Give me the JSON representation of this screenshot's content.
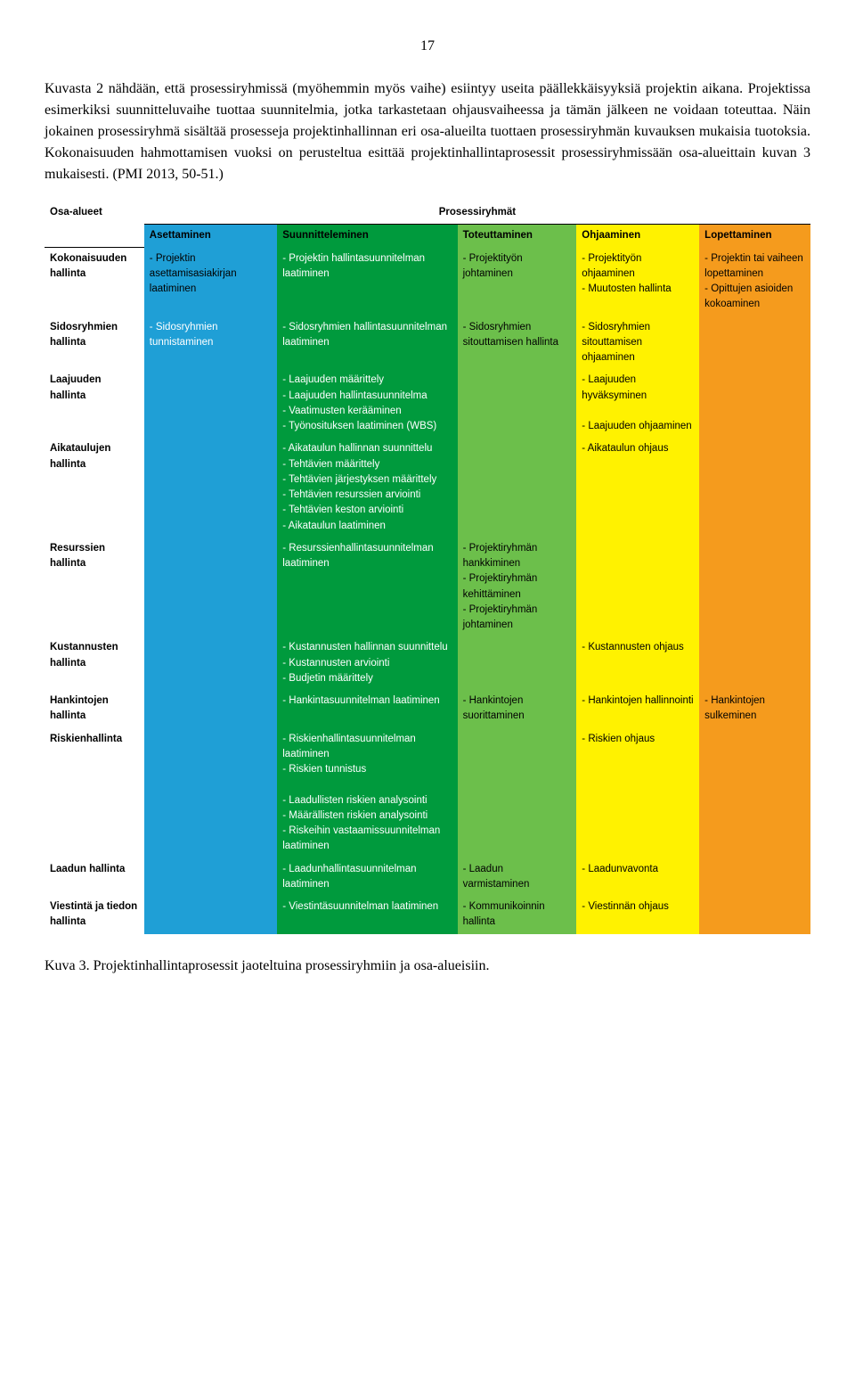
{
  "page_number": "17",
  "paragraph": "Kuvasta 2 nähdään, että prosessiryhmissä (myöhemmin myös vaihe) esiintyy useita päällekkäisyyksiä projektin aikana. Projektissa esimerkiksi suunnitteluvaihe tuottaa suunnitelmia, jotka tarkastetaan ohjausvaiheessa ja tämän jälkeen ne voidaan toteuttaa. Näin jokainen prosessiryhmä sisältää prosesseja projektinhallinnan eri osa-alueilta tuottaen prosessiryhmän kuvauksen mukaisia tuotoksia. Kokonaisuuden hahmottamisen vuoksi on perusteltua esittää projektinhallintaprosessit prosessiryhmissään osa-alueittain kuvan 3 mukaisesti. (PMI 2013, 50-51.)",
  "caption": "Kuva 3. Projektinhallintaprosessit jaoteltuina prosessiryhmiin ja osa-alueisiin.",
  "table": {
    "corner_label": "Osa-alueet",
    "group_header": "Prosessiryhmät",
    "columns": [
      {
        "label": "Asettaminen",
        "bg": "#1f9fd6",
        "fg": "#000000"
      },
      {
        "label": "Suunnitteleminen",
        "bg": "#009a3d",
        "fg": "#000000"
      },
      {
        "label": "Toteuttaminen",
        "bg": "#6cbf4b",
        "fg": "#000000"
      },
      {
        "label": "Ohjaaminen",
        "bg": "#fff200",
        "fg": "#000000"
      },
      {
        "label": "Lopettaminen",
        "bg": "#f59b1d",
        "fg": "#000000"
      }
    ],
    "rows": [
      {
        "label": "Kokonaisuuden hallinta",
        "cells": [
          {
            "text": "- Projektin asettamisasiakirjan laatiminen",
            "bg": "#1f9fd6",
            "fg": "#000000"
          },
          {
            "text": "- Projektin hallintasuunnitelman laatiminen",
            "bg": "#009a3d",
            "fg": "#ffffff"
          },
          {
            "text": "- Projektityön johtaminen",
            "bg": "#6cbf4b",
            "fg": "#000000"
          },
          {
            "text": "- Projektityön ohjaaminen\n- Muutosten hallinta",
            "bg": "#fff200",
            "fg": "#000000"
          },
          {
            "text": "- Projektin tai vaiheen lopettaminen\n- Opittujen asioiden kokoaminen",
            "bg": "#f59b1d",
            "fg": "#000000"
          }
        ]
      },
      {
        "label": "Sidosryhmien hallinta",
        "cells": [
          {
            "text": "- Sidosryhmien tunnistaminen",
            "bg": "#1f9fd6",
            "fg": "#ffffff"
          },
          {
            "text": "- Sidosryhmien hallintasuunnitelman laatiminen",
            "bg": "#009a3d",
            "fg": "#ffffff"
          },
          {
            "text": "- Sidosryhmien sitouttamisen hallinta",
            "bg": "#6cbf4b",
            "fg": "#000000"
          },
          {
            "text": "- Sidosryhmien sitouttamisen ohjaaminen",
            "bg": "#fff200",
            "fg": "#000000"
          },
          {
            "text": "",
            "bg": "#f59b1d",
            "fg": "#000000"
          }
        ]
      },
      {
        "label": "Laajuuden hallinta",
        "cells": [
          {
            "text": "",
            "bg": "#1f9fd6",
            "fg": "#000000"
          },
          {
            "text": "- Laajuuden määrittely\n- Laajuuden hallintasuunnitelma\n- Vaatimusten kerääminen\n- Työnosituksen laatiminen (WBS)",
            "bg": "#009a3d",
            "fg": "#ffffff"
          },
          {
            "text": "",
            "bg": "#6cbf4b",
            "fg": "#000000"
          },
          {
            "text": "- Laajuuden hyväksyminen\n\n- Laajuuden ohjaaminen",
            "bg": "#fff200",
            "fg": "#000000"
          },
          {
            "text": "",
            "bg": "#f59b1d",
            "fg": "#000000"
          }
        ]
      },
      {
        "label": "Aikataulujen hallinta",
        "cells": [
          {
            "text": "",
            "bg": "#1f9fd6",
            "fg": "#000000"
          },
          {
            "text": "- Aikataulun hallinnan suunnittelu\n- Tehtävien määrittely\n- Tehtävien järjestyksen määrittely\n- Tehtävien resurssien arviointi\n- Tehtävien keston arviointi\n- Aikataulun laatiminen",
            "bg": "#009a3d",
            "fg": "#ffffff"
          },
          {
            "text": "",
            "bg": "#6cbf4b",
            "fg": "#000000"
          },
          {
            "text": "- Aikataulun ohjaus",
            "bg": "#fff200",
            "fg": "#000000"
          },
          {
            "text": "",
            "bg": "#f59b1d",
            "fg": "#000000"
          }
        ]
      },
      {
        "label": "Resurssien hallinta",
        "cells": [
          {
            "text": "",
            "bg": "#1f9fd6",
            "fg": "#000000"
          },
          {
            "text": "- Resurssienhallintasuunnitelman laatiminen",
            "bg": "#009a3d",
            "fg": "#ffffff"
          },
          {
            "text": "- Projektiryhmän hankkiminen\n- Projektiryhmän kehittäminen\n- Projektiryhmän johtaminen",
            "bg": "#6cbf4b",
            "fg": "#000000"
          },
          {
            "text": "",
            "bg": "#fff200",
            "fg": "#000000"
          },
          {
            "text": "",
            "bg": "#f59b1d",
            "fg": "#000000"
          }
        ]
      },
      {
        "label": "Kustannusten hallinta",
        "cells": [
          {
            "text": "",
            "bg": "#1f9fd6",
            "fg": "#000000"
          },
          {
            "text": "- Kustannusten hallinnan suunnittelu\n- Kustannusten arviointi\n- Budjetin määrittely",
            "bg": "#009a3d",
            "fg": "#ffffff"
          },
          {
            "text": "",
            "bg": "#6cbf4b",
            "fg": "#000000"
          },
          {
            "text": "- Kustannusten ohjaus",
            "bg": "#fff200",
            "fg": "#000000"
          },
          {
            "text": "",
            "bg": "#f59b1d",
            "fg": "#000000"
          }
        ]
      },
      {
        "label": "Hankintojen hallinta",
        "cells": [
          {
            "text": "",
            "bg": "#1f9fd6",
            "fg": "#000000"
          },
          {
            "text": "- Hankintasuunnitelman laatiminen",
            "bg": "#009a3d",
            "fg": "#ffffff"
          },
          {
            "text": "- Hankintojen suorittaminen",
            "bg": "#6cbf4b",
            "fg": "#000000"
          },
          {
            "text": "- Hankintojen hallinnointi",
            "bg": "#fff200",
            "fg": "#000000"
          },
          {
            "text": "- Hankintojen sulkeminen",
            "bg": "#f59b1d",
            "fg": "#000000"
          }
        ]
      },
      {
        "label": "Riskienhallinta",
        "cells": [
          {
            "text": "",
            "bg": "#1f9fd6",
            "fg": "#000000"
          },
          {
            "text": "- Riskienhallintasuunnitelman laatiminen\n- Riskien tunnistus\n\n- Laadullisten riskien analysointi\n- Määrällisten riskien analysointi\n- Riskeihin vastaamissuunnitelman laatiminen",
            "bg": "#009a3d",
            "fg": "#ffffff"
          },
          {
            "text": "",
            "bg": "#6cbf4b",
            "fg": "#000000"
          },
          {
            "text": "- Riskien ohjaus",
            "bg": "#fff200",
            "fg": "#000000"
          },
          {
            "text": "",
            "bg": "#f59b1d",
            "fg": "#000000"
          }
        ]
      },
      {
        "label": "Laadun hallinta",
        "cells": [
          {
            "text": "",
            "bg": "#1f9fd6",
            "fg": "#000000"
          },
          {
            "text": "- Laadunhallintasuunnitelman laatiminen",
            "bg": "#009a3d",
            "fg": "#ffffff"
          },
          {
            "text": "- Laadun varmistaminen",
            "bg": "#6cbf4b",
            "fg": "#000000"
          },
          {
            "text": "- Laadunvavonta",
            "bg": "#fff200",
            "fg": "#000000"
          },
          {
            "text": "",
            "bg": "#f59b1d",
            "fg": "#000000"
          }
        ]
      },
      {
        "label": "Viestintä ja tiedon hallinta",
        "cells": [
          {
            "text": "",
            "bg": "#1f9fd6",
            "fg": "#000000"
          },
          {
            "text": "- Viestintäsuunnitelman laatiminen",
            "bg": "#009a3d",
            "fg": "#ffffff"
          },
          {
            "text": "- Kommunikoinnin hallinta",
            "bg": "#6cbf4b",
            "fg": "#000000"
          },
          {
            "text": "- Viestinnän ohjaus",
            "bg": "#fff200",
            "fg": "#000000"
          },
          {
            "text": "",
            "bg": "#f59b1d",
            "fg": "#000000"
          }
        ]
      }
    ]
  }
}
